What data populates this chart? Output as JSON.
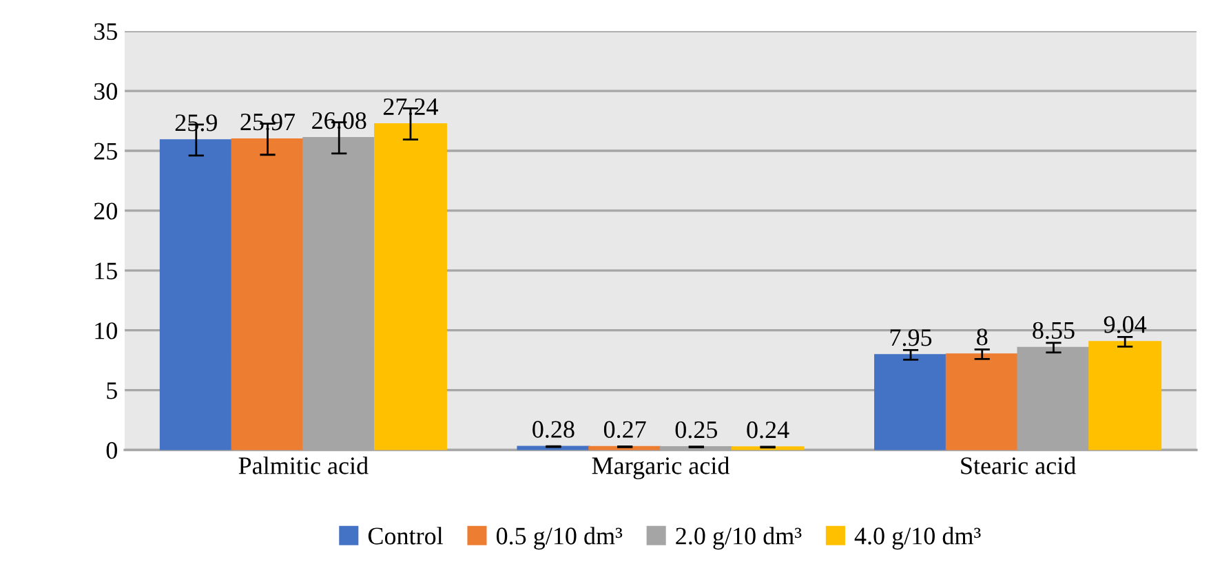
{
  "chart_data": {
    "type": "bar",
    "categories": [
      "Palmitic acid",
      "Margaric acid",
      "Stearic acid"
    ],
    "series": [
      {
        "name": "Control",
        "color": "#4472c4",
        "values": [
          25.9,
          0.28,
          7.95
        ],
        "errors": [
          1.3,
          0.03,
          0.4
        ]
      },
      {
        "name": "0.5 g/10 dm³",
        "color": "#ed7d31",
        "values": [
          25.97,
          0.27,
          8
        ],
        "errors": [
          1.3,
          0.03,
          0.4
        ]
      },
      {
        "name": "2.0 g/10 dm³",
        "color": "#a5a5a5",
        "values": [
          26.08,
          0.25,
          8.55
        ],
        "errors": [
          1.3,
          0.03,
          0.4
        ]
      },
      {
        "name": "4.0 g/10 dm³",
        "color": "#ffc000",
        "values": [
          27.24,
          0.24,
          9.04
        ],
        "errors": [
          1.3,
          0.03,
          0.4
        ]
      }
    ],
    "ylim": [
      0,
      35
    ],
    "yticks": [
      0,
      5,
      10,
      15,
      20,
      25,
      30,
      35
    ],
    "grid": "y",
    "data_labels": true,
    "legend": "bottom"
  }
}
